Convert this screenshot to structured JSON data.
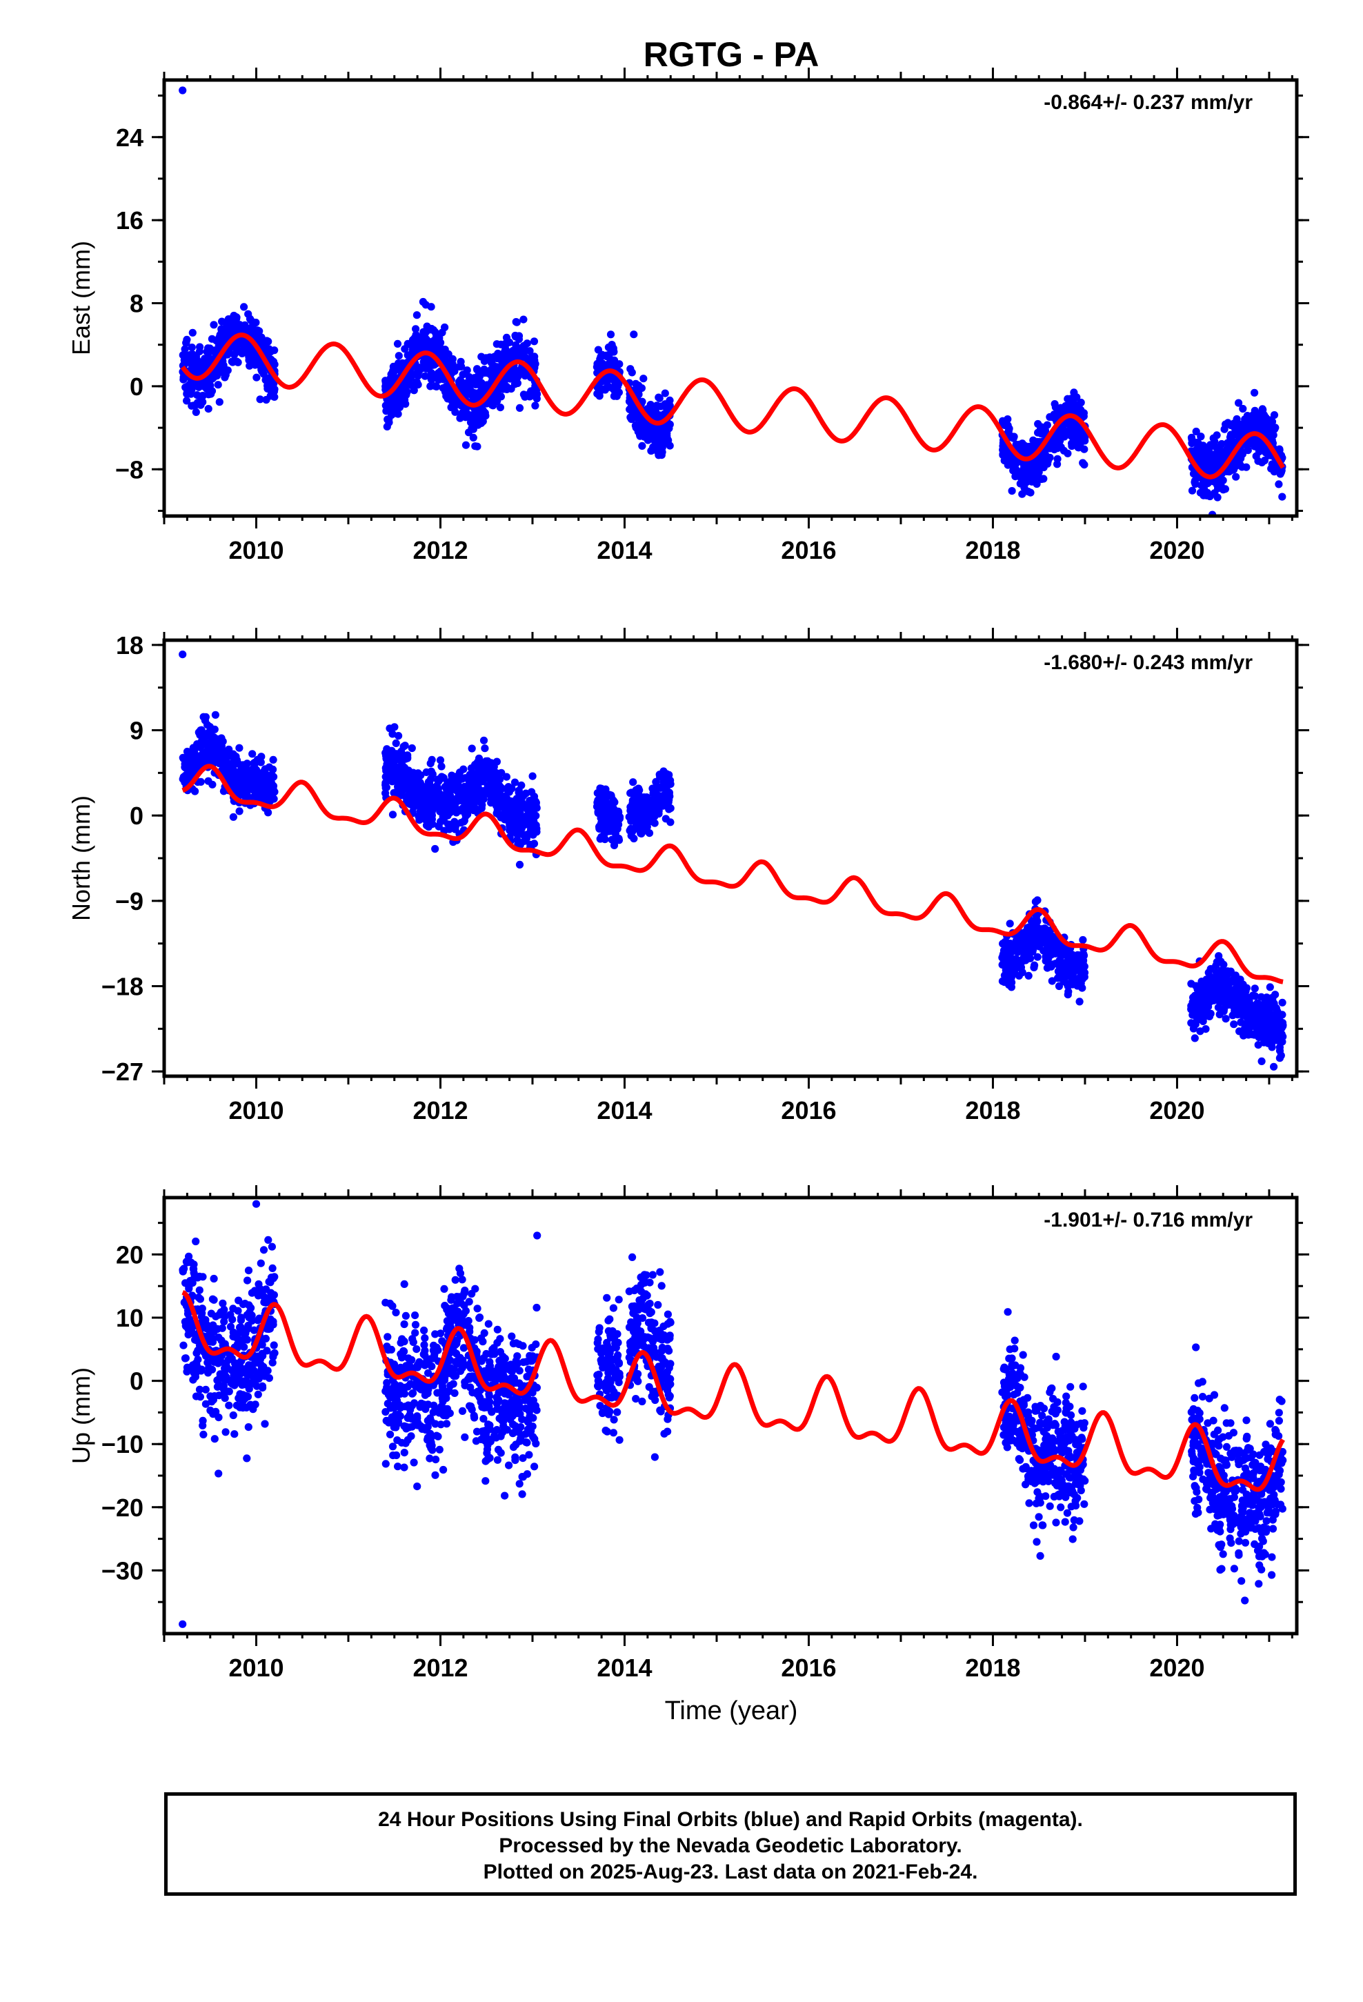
{
  "title": "RGTG - PA",
  "x_label": "Time (year)",
  "footer": {
    "line1": "24 Hour Positions Using Final Orbits (blue) and Rapid Orbits (magenta).",
    "line2": "Processed by the Nevada Geodetic Laboratory.",
    "line3": "Plotted on 2025-Aug-23. Last data on 2021-Feb-24."
  },
  "colors": {
    "final_orbits": "#0000ff",
    "rapid_orbits": "#ff00ff",
    "model": "#ff0000"
  },
  "chart_data": [
    {
      "type": "scatter",
      "name": "east",
      "ylabel": "East (mm)",
      "rate_label": "-0.864+/- 0.237 mm/yr",
      "xlim": [
        2009.0,
        2021.3
      ],
      "ylim": [
        -12.5,
        29.5
      ],
      "xticks": [
        2010,
        2012,
        2014,
        2016,
        2018,
        2020
      ],
      "yticks": [
        -8,
        0,
        8,
        16,
        24
      ],
      "model": {
        "offset": 3.2,
        "rate": -0.864,
        "t0": 2009.2,
        "amp": 2.3,
        "phase": 2009.85,
        "amp2": 0.0
      },
      "segments": [
        {
          "start": 2009.2,
          "end": 2010.2,
          "offset": 0.0,
          "noise": 1.3
        },
        {
          "start": 2011.4,
          "end": 2013.05,
          "offset": 0.2,
          "noise": 1.5
        },
        {
          "start": 2013.7,
          "end": 2013.95,
          "offset": 0.0,
          "noise": 1.2
        },
        {
          "start": 2014.05,
          "end": 2014.5,
          "offset": -0.5,
          "noise": 1.4
        },
        {
          "start": 2018.1,
          "end": 2019.0,
          "offset": -0.5,
          "noise": 1.3
        },
        {
          "start": 2020.15,
          "end": 2021.15,
          "offset": 0.5,
          "noise": 1.4
        }
      ],
      "outliers": [
        {
          "x": 2009.2,
          "y": 28.5
        },
        {
          "x": 2014.1,
          "y": 5.0
        },
        {
          "x": 2012.4,
          "y": -5.8
        }
      ]
    },
    {
      "type": "scatter",
      "name": "north",
      "ylabel": "North (mm)",
      "rate_label": "-1.680+/- 0.243 mm/yr",
      "xlim": [
        2009.0,
        2021.3
      ],
      "ylim": [
        -27.5,
        18.5
      ],
      "xticks": [
        2010,
        2012,
        2014,
        2016,
        2018,
        2020
      ],
      "yticks": [
        -27,
        -18,
        -9,
        0,
        9,
        18
      ],
      "model": {
        "offset": 3.6,
        "rate": -1.68,
        "t0": 2009.2,
        "amp": 1.5,
        "phase": 2009.5,
        "amp2": 0.6
      },
      "segments": [
        {
          "start": 2009.2,
          "end": 2010.2,
          "offset": 2.0,
          "noise": 1.4
        },
        {
          "start": 2011.4,
          "end": 2013.05,
          "offset": 3.5,
          "noise": 1.6
        },
        {
          "start": 2013.7,
          "end": 2013.95,
          "offset": 5.0,
          "noise": 1.6
        },
        {
          "start": 2014.05,
          "end": 2014.5,
          "offset": 6.0,
          "noise": 1.3
        },
        {
          "start": 2018.1,
          "end": 2019.0,
          "offset": -2.5,
          "noise": 1.3
        },
        {
          "start": 2020.15,
          "end": 2021.15,
          "offset": -4.5,
          "noise": 1.4
        }
      ],
      "outliers": [
        {
          "x": 2009.2,
          "y": 17.0
        },
        {
          "x": 2021.05,
          "y": -26.5
        }
      ]
    },
    {
      "type": "scatter",
      "name": "up",
      "ylabel": "Up (mm)",
      "rate_label": "-1.901+/- 0.716 mm/yr",
      "xlim": [
        2009.0,
        2021.3
      ],
      "ylim": [
        -40,
        29
      ],
      "xticks": [
        2010,
        2012,
        2014,
        2016,
        2018,
        2020
      ],
      "yticks": [
        -30,
        -20,
        -10,
        0,
        10,
        20
      ],
      "model": {
        "offset": 8.0,
        "rate": -1.901,
        "t0": 2009.2,
        "amp": 4.0,
        "phase": 2010.2,
        "amp2": 2.0
      },
      "segments": [
        {
          "start": 2009.2,
          "end": 2010.2,
          "offset": -1.0,
          "noise": 5.5
        },
        {
          "start": 2011.4,
          "end": 2013.05,
          "offset": -2.0,
          "noise": 5.5
        },
        {
          "start": 2013.7,
          "end": 2013.95,
          "offset": 6.0,
          "noise": 5.0
        },
        {
          "start": 2014.05,
          "end": 2014.5,
          "offset": 5.0,
          "noise": 5.0
        },
        {
          "start": 2018.1,
          "end": 2019.0,
          "offset": 0.0,
          "noise": 5.0
        },
        {
          "start": 2020.15,
          "end": 2021.15,
          "offset": -2.0,
          "noise": 5.0
        }
      ],
      "outliers": [
        {
          "x": 2009.2,
          "y": -38.5
        },
        {
          "x": 2010.0,
          "y": 28.0
        },
        {
          "x": 2013.05,
          "y": 23.0
        }
      ]
    }
  ]
}
